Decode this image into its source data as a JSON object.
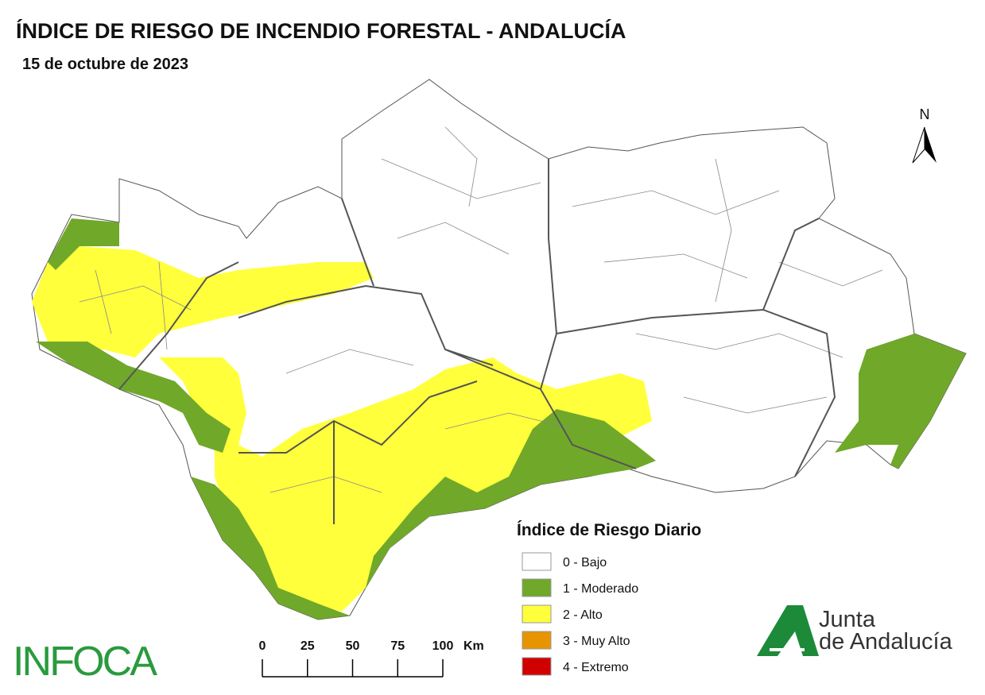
{
  "header": {
    "title": "ÍNDICE DE RIESGO DE INCENDIO FORESTAL - ANDALUCÍA",
    "date": "15 de octubre de 2023"
  },
  "north_arrow": {
    "label": "N"
  },
  "legend": {
    "title": "Índice de Riesgo Diario",
    "items": [
      {
        "label": "0 - Bajo",
        "color": "#ffffff"
      },
      {
        "label": "1 - Moderado",
        "color": "#70a82a"
      },
      {
        "label": "2 - Alto",
        "color": "#ffff3c"
      },
      {
        "label": "3 - Muy Alto",
        "color": "#e69500"
      },
      {
        "label": "4 - Extremo",
        "color": "#d00000"
      }
    ]
  },
  "scale_bar": {
    "ticks": [
      0,
      25,
      50,
      75,
      100
    ],
    "unit": "Km"
  },
  "logos": {
    "infoca": "INFOCA",
    "junta_line1": "Junta",
    "junta_line2": "de Andalucía"
  }
}
